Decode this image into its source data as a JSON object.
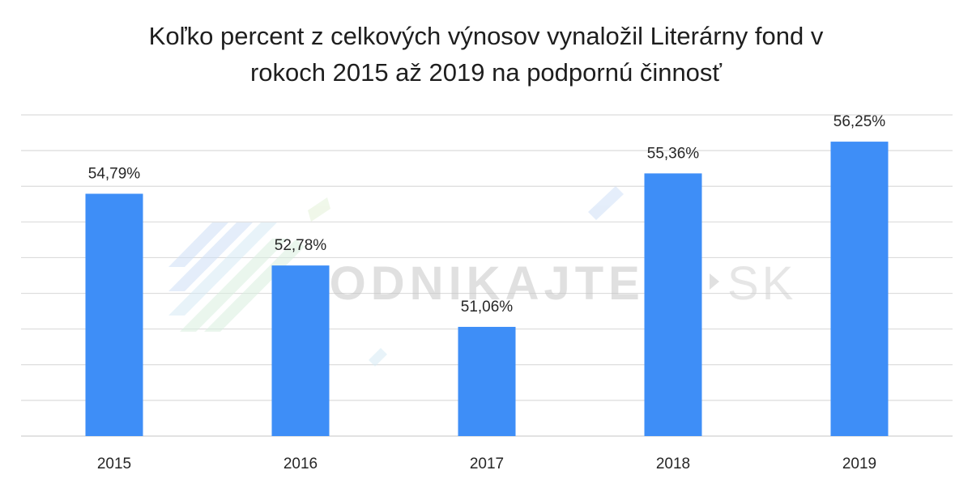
{
  "chart_data": {
    "type": "bar",
    "title_line1": "Koľko percent z celkových výnosov vynaložil Literárny fond v",
    "title_line2": "rokoch 2015 až 2019 na podpornú činnosť",
    "categories": [
      "2015",
      "2016",
      "2017",
      "2018",
      "2019"
    ],
    "values": [
      54.79,
      52.78,
      51.06,
      55.36,
      56.25
    ],
    "value_labels": [
      "54,79%",
      "52,78%",
      "51,06%",
      "55,36%",
      "56,25%"
    ],
    "xlabel": "",
    "ylabel": "",
    "ylim": [
      48,
      57
    ],
    "y_axis_labels_visible": false,
    "grid": true,
    "bar_color": "#3e8ef7"
  },
  "watermark": {
    "text_main": "PODNIKAJTE",
    "text_suffix": "SK"
  }
}
